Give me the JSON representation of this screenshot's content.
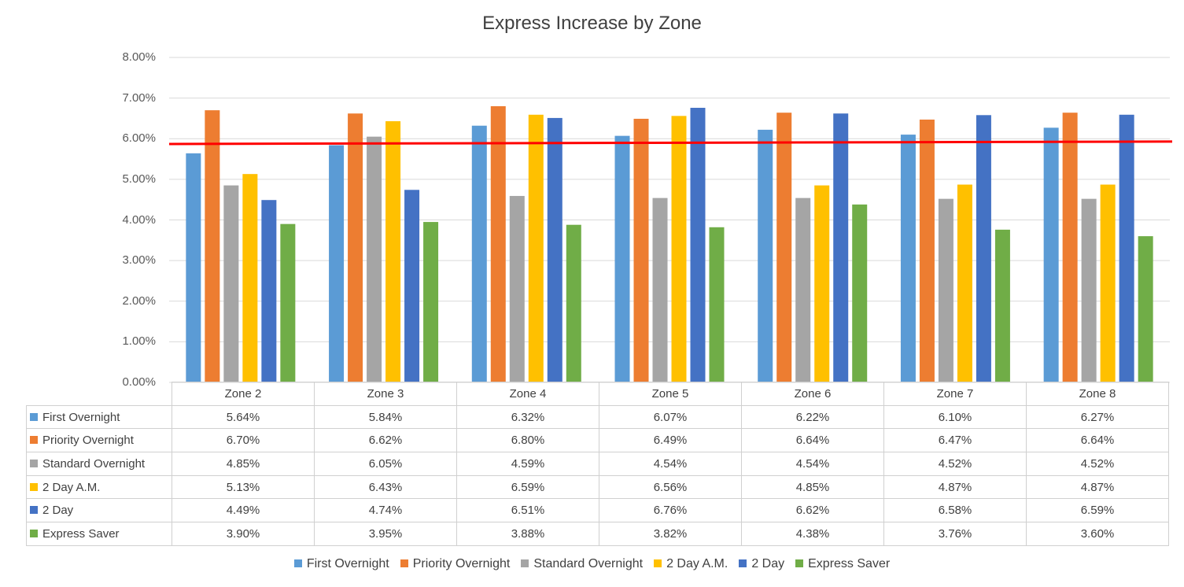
{
  "chart_data": {
    "type": "bar",
    "title": "Express Increase by Zone",
    "categories": [
      "Zone 2",
      "Zone 3",
      "Zone 4",
      "Zone 5",
      "Zone 6",
      "Zone 7",
      "Zone 8"
    ],
    "y_ticks": [
      "0.00%",
      "1.00%",
      "2.00%",
      "3.00%",
      "4.00%",
      "5.00%",
      "6.00%",
      "7.00%",
      "8.00%"
    ],
    "ylim": [
      0,
      8
    ],
    "grid": true,
    "legend_position": "bottom",
    "series": [
      {
        "name": "First Overnight",
        "color": "#5B9BD5",
        "values": [
          5.64,
          5.84,
          6.32,
          6.07,
          6.22,
          6.1,
          6.27
        ],
        "labels": [
          "5.64%",
          "5.84%",
          "6.32%",
          "6.07%",
          "6.22%",
          "6.10%",
          "6.27%"
        ]
      },
      {
        "name": "Priority Overnight",
        "color": "#ED7D31",
        "values": [
          6.7,
          6.62,
          6.8,
          6.49,
          6.64,
          6.47,
          6.64
        ],
        "labels": [
          "6.70%",
          "6.62%",
          "6.80%",
          "6.49%",
          "6.64%",
          "6.47%",
          "6.64%"
        ]
      },
      {
        "name": "Standard Overnight",
        "color": "#A5A5A5",
        "values": [
          4.85,
          6.05,
          4.59,
          4.54,
          4.54,
          4.52,
          4.52
        ],
        "labels": [
          "4.85%",
          "6.05%",
          "4.59%",
          "4.54%",
          "4.54%",
          "4.52%",
          "4.52%"
        ]
      },
      {
        "name": "2 Day A.M.",
        "color": "#FFC000",
        "values": [
          5.13,
          6.43,
          6.59,
          6.56,
          4.85,
          4.87,
          4.87
        ],
        "labels": [
          "5.13%",
          "6.43%",
          "6.59%",
          "6.56%",
          "4.85%",
          "4.87%",
          "4.87%"
        ]
      },
      {
        "name": "2 Day",
        "color": "#4472C4",
        "values": [
          4.49,
          4.74,
          6.51,
          6.76,
          6.62,
          6.58,
          6.59
        ],
        "labels": [
          "4.49%",
          "4.74%",
          "6.51%",
          "6.76%",
          "6.62%",
          "6.58%",
          "6.59%"
        ]
      },
      {
        "name": "Express Saver",
        "color": "#70AD47",
        "values": [
          3.9,
          3.95,
          3.88,
          3.82,
          4.38,
          3.76,
          3.6
        ],
        "labels": [
          "3.90%",
          "3.95%",
          "3.88%",
          "3.82%",
          "4.38%",
          "3.76%",
          "3.60%"
        ]
      }
    ],
    "reference_line": {
      "color": "#FF0000",
      "start_value": 5.87,
      "end_value": 5.93
    }
  }
}
